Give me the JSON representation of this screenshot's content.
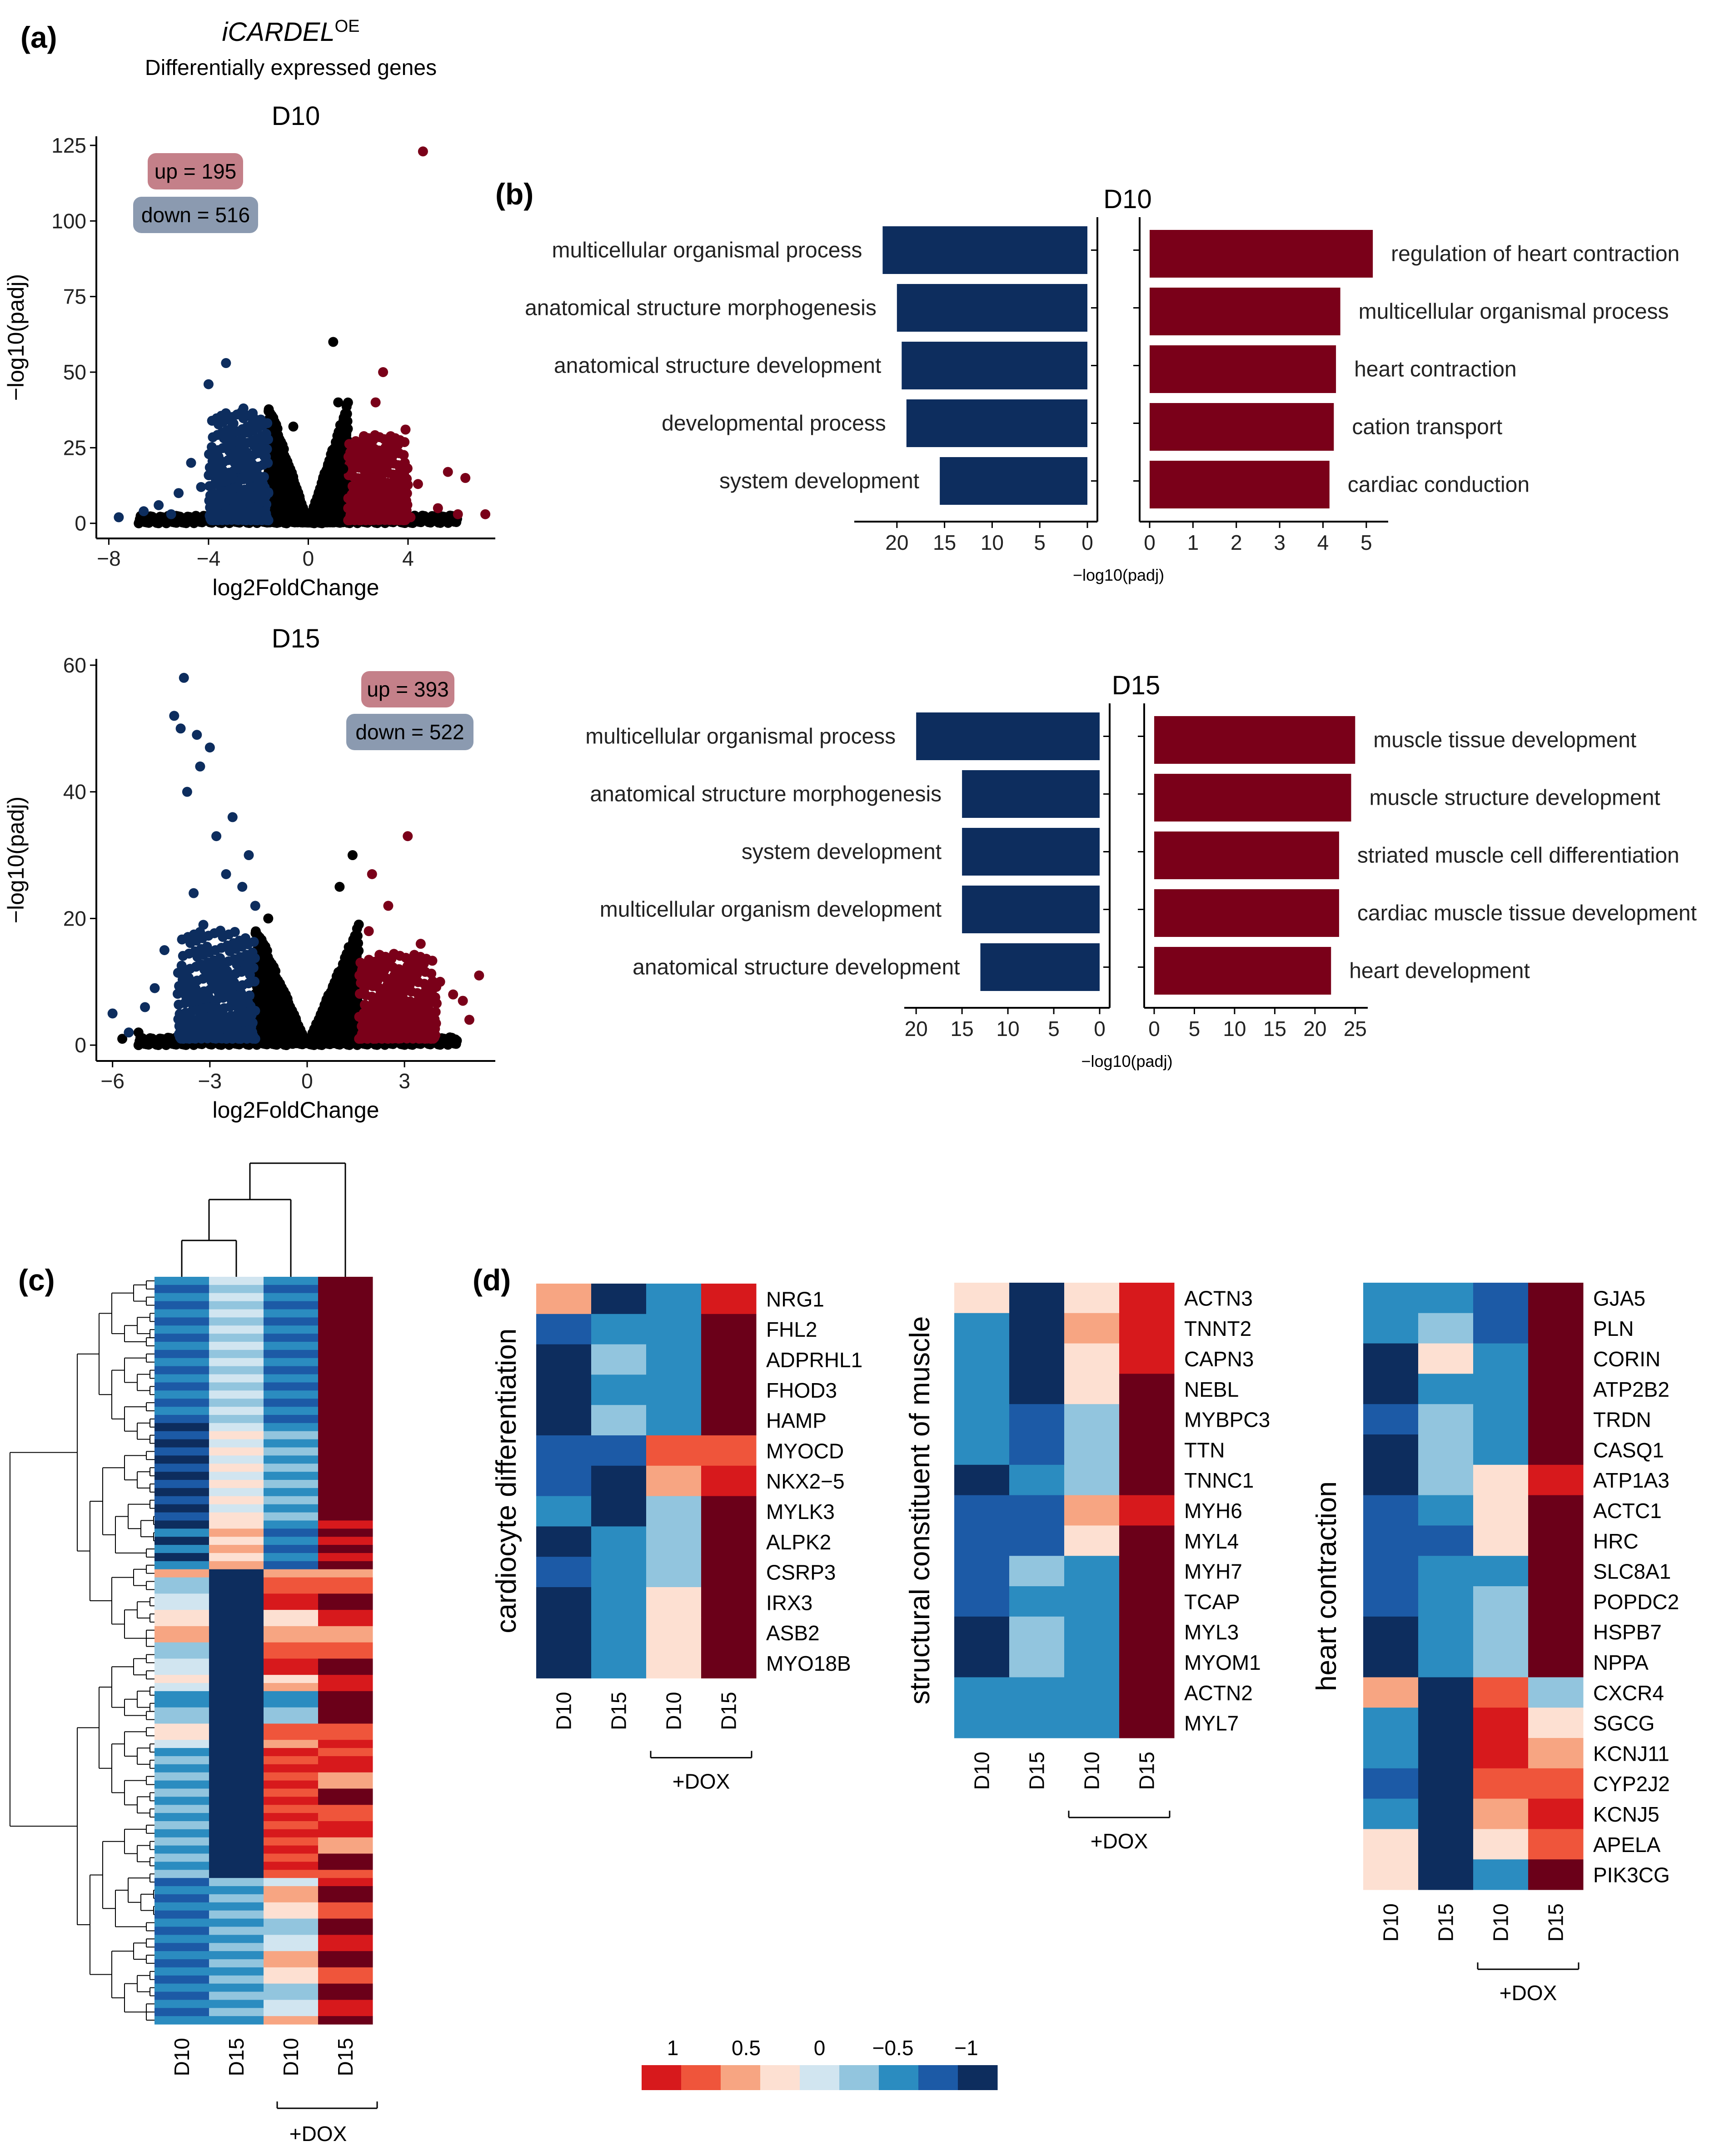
{
  "panel_labels": {
    "a": "(a)",
    "b": "(b)",
    "c": "(c)",
    "d": "(d)"
  },
  "header": {
    "title": "iCARDEL",
    "title_sup": "OE",
    "subtitle": "Differentially expressed genes"
  },
  "colors": {
    "up": "#7a0019",
    "down": "#0d2d5e",
    "ns": "#000000",
    "up_box": "#c48089",
    "down_box": "#8b9ab0"
  },
  "heat_colors": [
    "#d7191c",
    "#ef553b",
    "#f7a582",
    "#fde0d2",
    "#d1e5f0",
    "#92c5de",
    "#2b8cc0",
    "#1c5aa6",
    "#0d2d5e",
    "#6b0019"
  ],
  "chart_data": [
    {
      "id": "volcano_d10",
      "type": "scatter",
      "title": "D10",
      "xlabel": "log2FoldChange",
      "ylabel": "−log10(padj)",
      "xlim": [
        -8.5,
        7.5
      ],
      "ylim": [
        -5,
        128
      ],
      "xticks": [
        {
          "v": -8,
          "label": "−8"
        },
        {
          "v": -4,
          "label": "−4"
        },
        {
          "v": 0,
          "label": "0"
        },
        {
          "v": 4,
          "label": "4"
        }
      ],
      "yticks": [
        {
          "v": 0,
          "label": "0"
        },
        {
          "v": 25,
          "label": "25"
        },
        {
          "v": 50,
          "label": "50"
        },
        {
          "v": 75,
          "label": "75"
        },
        {
          "v": 100,
          "label": "100"
        },
        {
          "v": 125,
          "label": "125"
        }
      ],
      "up_label": "up = 195",
      "down_label": "down = 516",
      "up_points": [
        [
          4.6,
          123
        ],
        [
          3.0,
          50
        ],
        [
          2.7,
          40
        ],
        [
          3.9,
          31
        ],
        [
          5.6,
          17
        ],
        [
          6.3,
          15
        ],
        [
          4.4,
          13
        ],
        [
          2.0,
          20
        ],
        [
          2.5,
          15
        ],
        [
          3.3,
          10
        ],
        [
          3.8,
          6
        ],
        [
          5.2,
          5
        ],
        [
          7.1,
          3
        ],
        [
          1.8,
          12
        ],
        [
          2.2,
          8
        ],
        [
          2.9,
          4
        ],
        [
          4.1,
          2
        ],
        [
          6.0,
          3
        ],
        [
          1.6,
          5
        ]
      ],
      "down_points": [
        [
          -3.3,
          53
        ],
        [
          -4.0,
          46
        ],
        [
          -2.6,
          38
        ],
        [
          -2.2,
          35
        ],
        [
          -3.0,
          33
        ],
        [
          -2.5,
          30
        ],
        [
          -4.7,
          20
        ],
        [
          -3.6,
          22
        ],
        [
          -1.9,
          28
        ],
        [
          -2.1,
          25
        ],
        [
          -5.2,
          10
        ],
        [
          -6.0,
          6
        ],
        [
          -7.6,
          2
        ],
        [
          -4.3,
          12
        ],
        [
          -3.5,
          15
        ],
        [
          -2.8,
          18
        ],
        [
          -1.7,
          22
        ],
        [
          -2.3,
          12
        ],
        [
          -6.6,
          4
        ],
        [
          -5.5,
          3
        ],
        [
          -3.9,
          5
        ],
        [
          -1.6,
          10
        ]
      ],
      "ns_points": [
        [
          1.0,
          60
        ],
        [
          1.2,
          40
        ],
        [
          -1.0,
          8
        ],
        [
          -0.6,
          32
        ],
        [
          5.5,
          2
        ],
        [
          -6.4,
          2
        ],
        [
          1.4,
          18
        ],
        [
          -1.2,
          14
        ]
      ]
    },
    {
      "id": "volcano_d15",
      "type": "scatter",
      "title": "D15",
      "xlabel": "log2FoldChange",
      "ylabel": "−log10(padj)",
      "xlim": [
        -6.5,
        5.8
      ],
      "ylim": [
        -2.5,
        61
      ],
      "xticks": [
        {
          "v": -6,
          "label": "−6"
        },
        {
          "v": -3,
          "label": "−3"
        },
        {
          "v": 0,
          "label": "0"
        },
        {
          "v": 3,
          "label": "3"
        }
      ],
      "yticks": [
        {
          "v": 0,
          "label": "0"
        },
        {
          "v": 20,
          "label": "20"
        },
        {
          "v": 40,
          "label": "40"
        },
        {
          "v": 60,
          "label": "60"
        }
      ],
      "up_label": "up = 393",
      "down_label": "down = 522",
      "up_points": [
        [
          3.1,
          33
        ],
        [
          2.0,
          27
        ],
        [
          5.3,
          11
        ],
        [
          4.1,
          10
        ],
        [
          2.5,
          22
        ],
        [
          1.9,
          18
        ],
        [
          3.5,
          16
        ],
        [
          2.3,
          14
        ],
        [
          4.5,
          8
        ],
        [
          1.7,
          12
        ],
        [
          2.8,
          6
        ],
        [
          3.8,
          5
        ],
        [
          5.0,
          4
        ],
        [
          2.0,
          4
        ],
        [
          4.8,
          7
        ]
      ],
      "down_points": [
        [
          -3.8,
          58
        ],
        [
          -4.1,
          52
        ],
        [
          -3.9,
          50
        ],
        [
          -3.4,
          49
        ],
        [
          -3.0,
          47
        ],
        [
          -3.3,
          44
        ],
        [
          -3.7,
          40
        ],
        [
          -2.3,
          36
        ],
        [
          -2.8,
          33
        ],
        [
          -1.8,
          30
        ],
        [
          -2.5,
          27
        ],
        [
          -3.5,
          24
        ],
        [
          -2.0,
          25
        ],
        [
          -1.6,
          22
        ],
        [
          -4.4,
          15
        ],
        [
          -5.0,
          6
        ],
        [
          -6.0,
          5
        ],
        [
          -5.5,
          2
        ],
        [
          -4.7,
          9
        ],
        [
          -2.9,
          12
        ],
        [
          -1.9,
          14
        ],
        [
          -3.2,
          19
        ]
      ],
      "ns_points": [
        [
          -5.7,
          1
        ],
        [
          -5.2,
          2
        ],
        [
          -1.2,
          20
        ],
        [
          1.4,
          30
        ],
        [
          1.0,
          25
        ],
        [
          -0.8,
          8
        ],
        [
          1.2,
          14
        ]
      ]
    },
    {
      "id": "go_d10",
      "type": "bar",
      "title": "D10",
      "xlabel": "−log10(padj)",
      "down_terms": [
        "multicellular organismal process",
        "anatomical structure morphogenesis",
        "anatomical structure development",
        "developmental process",
        "system development"
      ],
      "down_values": [
        21.5,
        20.0,
        19.5,
        19.0,
        15.5
      ],
      "down_ticks": [
        {
          "v": 20,
          "label": "20"
        },
        {
          "v": 15,
          "label": "15"
        },
        {
          "v": 10,
          "label": "10"
        },
        {
          "v": 5,
          "label": "5"
        },
        {
          "v": 0,
          "label": "0"
        }
      ],
      "down_max": 24,
      "up_terms": [
        "regulation of heart contraction",
        "multicellular organismal process",
        "heart contraction",
        "cation transport",
        "cardiac conduction"
      ],
      "up_values": [
        5.15,
        4.4,
        4.3,
        4.25,
        4.15
      ],
      "up_ticks": [
        {
          "v": 0,
          "label": "0"
        },
        {
          "v": 1,
          "label": "1"
        },
        {
          "v": 2,
          "label": "2"
        },
        {
          "v": 3,
          "label": "3"
        },
        {
          "v": 4,
          "label": "4"
        },
        {
          "v": 5,
          "label": "5"
        }
      ],
      "up_max": 5.4
    },
    {
      "id": "go_d15",
      "type": "bar",
      "title": "D15",
      "xlabel": "−log10(padj)",
      "down_terms": [
        "multicellular organismal process",
        "anatomical structure morphogenesis",
        "system development",
        "multicellular organism development",
        "anatomical structure development"
      ],
      "down_values": [
        20.0,
        15.0,
        15.0,
        15.0,
        13.0
      ],
      "down_ticks": [
        {
          "v": 20,
          "label": "20"
        },
        {
          "v": 15,
          "label": "15"
        },
        {
          "v": 10,
          "label": "10"
        },
        {
          "v": 5,
          "label": "5"
        },
        {
          "v": 0,
          "label": "0"
        }
      ],
      "down_max": 20.8,
      "up_terms": [
        "muscle tissue development",
        "muscle structure development",
        "striated muscle cell differentiation",
        "cardiac muscle tissue development",
        "heart development"
      ],
      "up_values": [
        25.0,
        24.5,
        23.0,
        23.0,
        22.0
      ],
      "up_ticks": [
        {
          "v": 0,
          "label": "0"
        },
        {
          "v": 5,
          "label": "5"
        },
        {
          "v": 10,
          "label": "10"
        },
        {
          "v": 15,
          "label": "15"
        },
        {
          "v": 20,
          "label": "20"
        },
        {
          "v": 25,
          "label": "25"
        }
      ],
      "up_max": 26
    },
    {
      "id": "heatmap_c",
      "type": "heatmap",
      "columns": [
        "D10",
        "D15",
        "D10",
        "D15"
      ],
      "dox_label": "+DOX",
      "blocks": [
        {
          "rows": 18,
          "cols": [
            [
              6,
              7,
              8
            ],
            [
              4,
              5,
              5
            ],
            [
              6,
              7,
              5
            ],
            [
              9,
              9,
              9
            ]
          ]
        },
        {
          "rows": 12,
          "cols": [
            [
              8,
              7,
              6
            ],
            [
              4,
              3,
              5
            ],
            [
              6,
              5,
              7
            ],
            [
              9,
              9,
              9
            ]
          ]
        },
        {
          "rows": 6,
          "cols": [
            [
              8,
              6,
              7
            ],
            [
              3,
              2,
              4
            ],
            [
              6,
              7,
              6
            ],
            [
              0,
              9,
              1
            ]
          ]
        },
        {
          "rows": 14,
          "cols": [
            [
              2,
              3,
              4,
              5
            ],
            [
              8,
              8,
              8
            ],
            [
              0,
              1,
              2,
              3
            ],
            [
              1,
              2,
              0,
              9
            ]
          ]
        },
        {
          "rows": 8,
          "cols": [
            [
              4,
              3,
              5,
              6
            ],
            [
              8,
              8,
              8
            ],
            [
              5,
              6,
              2,
              1
            ],
            [
              9,
              0,
              1,
              9
            ]
          ]
        },
        {
          "rows": 16,
          "cols": [
            [
              6,
              5,
              7
            ],
            [
              8,
              8,
              7
            ],
            [
              0,
              1,
              2
            ],
            [
              0,
              1,
              9,
              2
            ]
          ]
        },
        {
          "rows": 18,
          "cols": [
            [
              7,
              6,
              8
            ],
            [
              5,
              6,
              7
            ],
            [
              3,
              2,
              4,
              5
            ],
            [
              9,
              0,
              9,
              1
            ]
          ]
        }
      ]
    },
    {
      "id": "heat_cardiocyte",
      "type": "heatmap",
      "title": "cardiocyte differentiation",
      "genes": [
        "NRG1",
        "FHL2",
        "ADPRHL1",
        "FHOD3",
        "HAMP",
        "MYOCD",
        "NKX2−5",
        "MYLK3",
        "ALPK2",
        "CSRP3",
        "IRX3",
        "ASB2",
        "MYO18B"
      ],
      "columns": [
        "D10",
        "D15",
        "D10",
        "D15"
      ],
      "dox_label": "+DOX",
      "values": [
        [
          0.6,
          -1,
          -0.4,
          0.9
        ],
        [
          -0.8,
          -0.6,
          -0.4,
          1
        ],
        [
          -1,
          -0.2,
          -0.6,
          1
        ],
        [
          -1,
          -0.4,
          -0.4,
          1
        ],
        [
          -1,
          -0.2,
          -0.4,
          1
        ],
        [
          -0.8,
          -0.8,
          0.7,
          0.7
        ],
        [
          -0.8,
          -1,
          0.5,
          0.9
        ],
        [
          -0.6,
          -1,
          -0.2,
          1
        ],
        [
          -1,
          -0.6,
          -0.2,
          1
        ],
        [
          -0.7,
          -0.6,
          -0.2,
          1
        ],
        [
          -1,
          -0.6,
          0.2,
          1
        ],
        [
          -1,
          -0.6,
          0.2,
          1
        ],
        [
          -1,
          -0.6,
          0.2,
          1
        ]
      ]
    },
    {
      "id": "heat_structural",
      "type": "heatmap",
      "title": "structural constituent of muscle",
      "genes": [
        "ACTN3",
        "TNNT2",
        "CAPN3",
        "NEBL",
        "MYBPC3",
        "TTN",
        "TNNC1",
        "MYH6",
        "MYL4",
        "MYH7",
        "TCAP",
        "MYL3",
        "MYOM1",
        "ACTN2",
        "MYL7"
      ],
      "columns": [
        "D10",
        "D15",
        "D10",
        "D15"
      ],
      "dox_label": "+DOX",
      "values": [
        [
          0.2,
          -1,
          0.2,
          0.9
        ],
        [
          -0.6,
          -1,
          0.5,
          0.9
        ],
        [
          -0.4,
          -1,
          0.2,
          0.9
        ],
        [
          -0.6,
          -1,
          0.2,
          1
        ],
        [
          -0.6,
          -0.8,
          -0.2,
          1
        ],
        [
          -0.6,
          -0.8,
          -0.2,
          1
        ],
        [
          -1,
          -0.6,
          -0.2,
          1
        ],
        [
          -0.8,
          -0.8,
          0.5,
          0.9
        ],
        [
          -0.8,
          -0.8,
          0.2,
          1
        ],
        [
          -0.8,
          -0.2,
          -0.6,
          1
        ],
        [
          -0.8,
          -0.4,
          -0.4,
          1
        ],
        [
          -1,
          -0.2,
          -0.4,
          1
        ],
        [
          -1,
          -0.2,
          -0.4,
          1
        ],
        [
          -0.6,
          -0.6,
          -0.4,
          1
        ],
        [
          -0.6,
          -0.6,
          -0.4,
          1
        ]
      ]
    },
    {
      "id": "heat_heart",
      "type": "heatmap",
      "title": "heart contraction",
      "genes": [
        "GJA5",
        "PLN",
        "CORIN",
        "ATP2B2",
        "TRDN",
        "CASQ1",
        "ATP1A3",
        "ACTC1",
        "HRC",
        "SLC8A1",
        "POPDC2",
        "HSPB7",
        "NPPA",
        "CXCR4",
        "SGCG",
        "KCNJ11",
        "CYP2J2",
        "KCNJ5",
        "APELA",
        "PIK3CG"
      ],
      "columns": [
        "D10",
        "D15",
        "D10",
        "D15"
      ],
      "dox_label": "+DOX",
      "values": [
        [
          -0.6,
          -0.4,
          -0.8,
          1
        ],
        [
          -0.6,
          -0.2,
          -0.8,
          1
        ],
        [
          -1,
          0.2,
          -0.6,
          1
        ],
        [
          -1,
          -0.4,
          -0.4,
          1
        ],
        [
          -0.8,
          -0.2,
          -0.6,
          1
        ],
        [
          -1,
          -0.2,
          -0.4,
          1
        ],
        [
          -1,
          -0.2,
          0.2,
          0.9
        ],
        [
          -0.8,
          -0.6,
          0.2,
          1
        ],
        [
          -0.8,
          -0.8,
          0.2,
          1
        ],
        [
          -0.8,
          -0.6,
          -0.4,
          1
        ],
        [
          -0.8,
          -0.6,
          -0.2,
          1
        ],
        [
          -1,
          -0.4,
          -0.2,
          1
        ],
        [
          -1,
          -0.4,
          -0.2,
          1
        ],
        [
          0.5,
          -1,
          0.7,
          -0.2
        ],
        [
          -0.4,
          -1,
          0.9,
          0.2
        ],
        [
          -0.4,
          -1,
          0.9,
          0.5
        ],
        [
          -0.8,
          -1,
          0.7,
          0.7
        ],
        [
          -0.6,
          -1,
          0.5,
          0.9
        ],
        [
          0.2,
          -1,
          0.2,
          0.7
        ],
        [
          0.2,
          -1,
          -0.4,
          1
        ]
      ]
    },
    {
      "id": "legend",
      "type": "colorbar",
      "ticks": [
        {
          "v": 1,
          "label": "1"
        },
        {
          "v": 0.5,
          "label": "0.5"
        },
        {
          "v": 0,
          "label": "0"
        },
        {
          "v": -0.5,
          "label": "−0.5"
        },
        {
          "v": -1,
          "label": "−1"
        }
      ]
    }
  ]
}
